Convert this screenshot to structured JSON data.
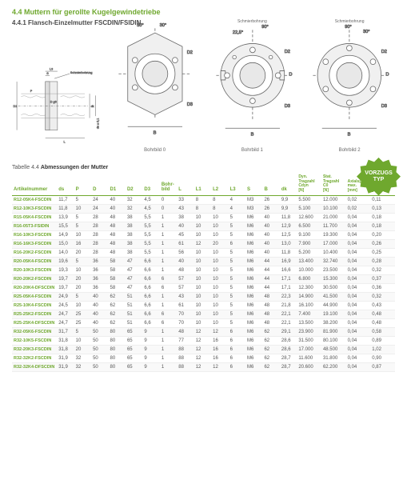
{
  "section_title": "4.4 Muttern für gerollte Kugelgewindetriebe",
  "subsection_title": "4.4.1 Flansch-Einzelmutter FSCDIN/FSIDIN",
  "diagram_labels": {
    "schmierbohrung": "Schmierbohrung",
    "bohrbild0": "Bohrbild 0",
    "bohrbild1": "Bohrbild 1",
    "bohrbild2": "Bohrbild 2",
    "angle30": "30°",
    "angle90": "90°",
    "angle225": "22,5°",
    "L": "L",
    "L3": "L3",
    "S": "S",
    "P": "P",
    "D1": "D1",
    "D2": "D2",
    "D3": "D3",
    "D": "D",
    "dk": "dk",
    "B": "B",
    "dgl": "D g6",
    "ds01": "ds ± 0,1"
  },
  "badge": {
    "line1": "VORZUGS",
    "line2": "TYP",
    "color": "#6fa82e"
  },
  "table_caption_prefix": "Tabelle 4.4 ",
  "table_caption": "Abmessungen der Mutter",
  "columns": [
    "Artikelnummer",
    "ds",
    "P",
    "D",
    "D1",
    "D2",
    "D3",
    "Bohr-bild",
    "L",
    "L1",
    "L2",
    "L3",
    "S",
    "B",
    "dk",
    "Dyn. Tragzahl Cdyn [N]",
    "Stat. Tragzahl C0 [N]",
    "Axialspiel max. [mm]",
    "Masse [kg/St.]"
  ],
  "rows": [
    [
      "R12-05K4-FSCDIN",
      "11,7",
      "5",
      "24",
      "40",
      "32",
      "4,5",
      "0",
      "33",
      "8",
      "8",
      "4",
      "M3",
      "26",
      "9,9",
      "5.500",
      "12.000",
      "0,02",
      "0,11"
    ],
    [
      "R12-10K3-FSCDIN",
      "11,8",
      "10",
      "24",
      "40",
      "32",
      "4,5",
      "0",
      "43",
      "8",
      "8",
      "4",
      "M3",
      "26",
      "9,9",
      "5.100",
      "10.100",
      "0,02",
      "0,13"
    ],
    [
      "R15-05K4-FSCDIN",
      "13,9",
      "5",
      "28",
      "48",
      "38",
      "5,5",
      "1",
      "38",
      "10",
      "10",
      "5",
      "M6",
      "40",
      "11,8",
      "12.600",
      "21.000",
      "0,04",
      "0,18"
    ],
    [
      "R16-05T3-FSIDIN",
      "15,5",
      "5",
      "28",
      "48",
      "38",
      "5,5",
      "1",
      "40",
      "10",
      "10",
      "5",
      "M6",
      "40",
      "12,9",
      "6.500",
      "11.700",
      "0,04",
      "0,18"
    ],
    [
      "R16-10K3-FSCDIN",
      "14,9",
      "10",
      "28",
      "48",
      "38",
      "5,5",
      "1",
      "45",
      "10",
      "10",
      "5",
      "M6",
      "40",
      "12,5",
      "9.100",
      "19.300",
      "0,04",
      "0,20"
    ],
    [
      "R16-16K3-FSCDIN",
      "15,0",
      "16",
      "28",
      "48",
      "38",
      "5,5",
      "1",
      "61",
      "12",
      "20",
      "6",
      "M6",
      "40",
      "13,0",
      "7.900",
      "17.000",
      "0,04",
      "0,26"
    ],
    [
      "R16-20K2-FSCDIN",
      "14,0",
      "20",
      "28",
      "48",
      "38",
      "5,5",
      "1",
      "56",
      "10",
      "10",
      "5",
      "M6",
      "40",
      "11,8",
      "5.200",
      "10.400",
      "0,04",
      "0,25"
    ],
    [
      "R20-05K4-FSCDIN",
      "19,6",
      "5",
      "36",
      "58",
      "47",
      "6,6",
      "1",
      "40",
      "10",
      "10",
      "5",
      "M6",
      "44",
      "16,9",
      "13.400",
      "32.740",
      "0,04",
      "0,28"
    ],
    [
      "R20-10K3-FSCDIN",
      "19,3",
      "10",
      "36",
      "58",
      "47",
      "6,6",
      "1",
      "48",
      "10",
      "10",
      "5",
      "M6",
      "44",
      "16,6",
      "10.000",
      "23.500",
      "0,04",
      "0,32"
    ],
    [
      "R20-20K2-FSCDIN",
      "19,7",
      "20",
      "36",
      "58",
      "47",
      "6,6",
      "6",
      "57",
      "10",
      "10",
      "5",
      "M6",
      "44",
      "17,1",
      "6.800",
      "15.300",
      "0,04",
      "0,37"
    ],
    [
      "R20-20K4-DFSCDIN",
      "19,7",
      "20",
      "36",
      "58",
      "47",
      "6,6",
      "6",
      "57",
      "10",
      "10",
      "5",
      "M6",
      "44",
      "17,1",
      "12.300",
      "30.500",
      "0,04",
      "0,36"
    ],
    [
      "R25-05K4-FSCDIN",
      "24,9",
      "5",
      "40",
      "62",
      "51",
      "6,6",
      "1",
      "43",
      "10",
      "10",
      "5",
      "M6",
      "48",
      "22,3",
      "14.900",
      "41.500",
      "0,04",
      "0,32"
    ],
    [
      "R25-10K4-FSCDIN",
      "24,5",
      "10",
      "40",
      "62",
      "51",
      "6,6",
      "1",
      "61",
      "10",
      "10",
      "5",
      "M6",
      "48",
      "21,8",
      "16.100",
      "44.900",
      "0,04",
      "0,43"
    ],
    [
      "R25-25K2-FSCDIN",
      "24,7",
      "25",
      "40",
      "62",
      "51",
      "6,6",
      "6",
      "70",
      "10",
      "10",
      "5",
      "M6",
      "48",
      "22,1",
      "7.400",
      "19.100",
      "0,04",
      "0,48"
    ],
    [
      "R25-25K4-DFSCDIN",
      "24,7",
      "25",
      "40",
      "62",
      "51",
      "6,6",
      "6",
      "70",
      "10",
      "10",
      "5",
      "M6",
      "48",
      "22,1",
      "13.500",
      "38.200",
      "0,04",
      "0,48"
    ],
    [
      "R32-05K6-FSCDIN",
      "31,7",
      "5",
      "50",
      "80",
      "65",
      "9",
      "1",
      "48",
      "12",
      "12",
      "6",
      "M6",
      "62",
      "29,1",
      "23.900",
      "81.900",
      "0,04",
      "0,58"
    ],
    [
      "R32-10K5-FSCDIN",
      "31,8",
      "10",
      "50",
      "80",
      "65",
      "9",
      "1",
      "77",
      "12",
      "16",
      "6",
      "M6",
      "62",
      "28,6",
      "31.500",
      "80.100",
      "0,04",
      "0,89"
    ],
    [
      "R32-20K3-FSCDIN",
      "31,8",
      "20",
      "50",
      "80",
      "65",
      "9",
      "1",
      "88",
      "12",
      "16",
      "6",
      "M6",
      "62",
      "28,6",
      "17.000",
      "48.500",
      "0,04",
      "1,02"
    ],
    [
      "R32-32K2-FSCDIN",
      "31,9",
      "32",
      "50",
      "80",
      "65",
      "9",
      "1",
      "88",
      "12",
      "16",
      "6",
      "M6",
      "62",
      "28,7",
      "11.600",
      "31.800",
      "0,04",
      "0,90"
    ],
    [
      "R32-32K4-DFSCDIN",
      "31,9",
      "32",
      "50",
      "80",
      "65",
      "9",
      "1",
      "88",
      "12",
      "12",
      "6",
      "M6",
      "62",
      "28,7",
      "20.600",
      "62.200",
      "0,04",
      "0,87"
    ]
  ],
  "colors": {
    "accent": "#6fa82e",
    "text": "#555555",
    "header_text": "#333333"
  }
}
